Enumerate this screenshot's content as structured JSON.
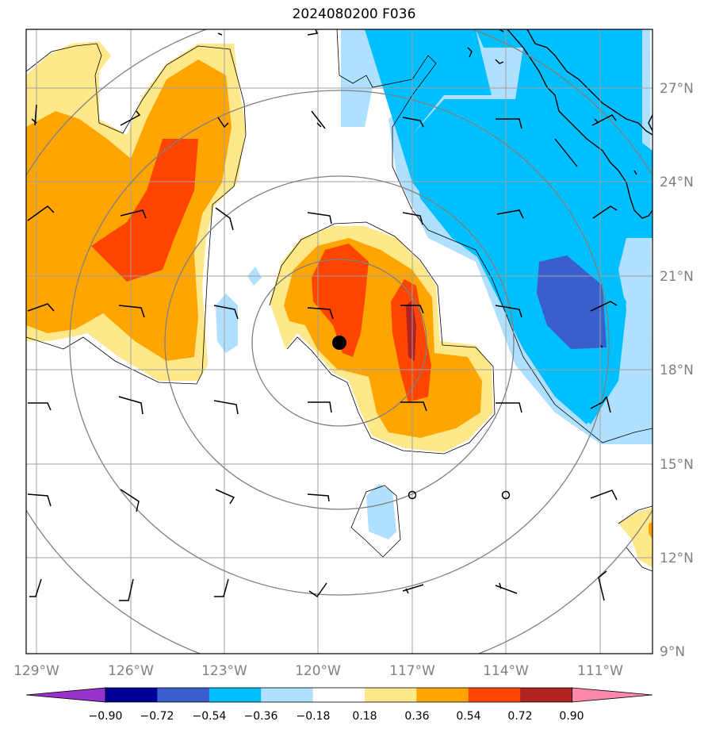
{
  "title": "2024080200 F036",
  "latitude_labels": [
    "27°N",
    "24°N",
    "21°N",
    "18°N",
    "15°N",
    "12°N",
    "9°N"
  ],
  "longitude_labels": [
    "129°W",
    "126°W",
    "123°W",
    "120°W",
    "117°W",
    "114°W",
    "111°W"
  ],
  "colorbar": {
    "tick_labels": [
      "−0.90",
      "−0.72",
      "−0.54",
      "−0.36",
      "−0.18",
      "0.18",
      "0.36",
      "0.54",
      "0.72",
      "0.90"
    ],
    "colors": [
      "#9933cc",
      "#000099",
      "#3a5fcd",
      "#00bfff",
      "#b0e0ff",
      "#ffffff",
      "#ffe88a",
      "#ffa500",
      "#ff4500",
      "#b22222",
      "#ff88aa"
    ]
  },
  "colors": {
    "grid": "#a0a0a0",
    "range_rings": "#808080",
    "coastline": "#000000",
    "barbs": "#000000"
  }
}
